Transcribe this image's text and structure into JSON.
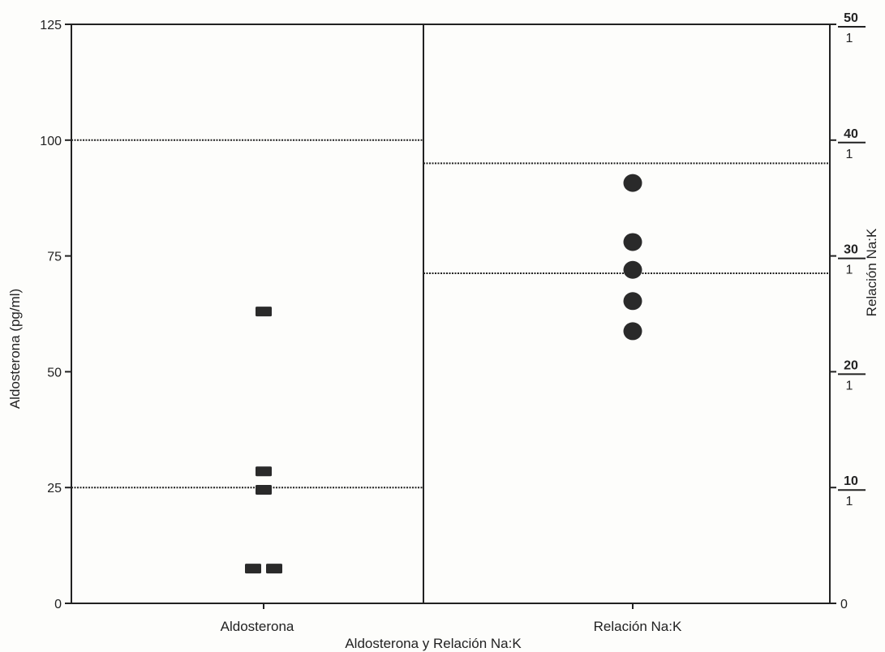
{
  "chart_data": {
    "type": "scatter",
    "xlabel": "Aldosterona y Relación Na:K",
    "categories": [
      "Aldosterona",
      "Relación Na:K"
    ],
    "left_axis": {
      "label": "Aldosterona (pg/ml)",
      "ylim": [
        0,
        125
      ],
      "ticks": [
        "0",
        "25",
        "50",
        "75",
        "100",
        "125"
      ],
      "tick_values": [
        0,
        25,
        50,
        75,
        100,
        125
      ]
    },
    "right_axis": {
      "label": "Relación Na:K",
      "ylim": [
        0,
        50
      ],
      "tick_values": [
        0,
        10,
        20,
        30,
        40,
        50
      ],
      "ticks": [
        {
          "top": "0",
          "bottom": ""
        },
        {
          "top": "10",
          "bottom": "1"
        },
        {
          "top": "20",
          "bottom": "1"
        },
        {
          "top": "30",
          "bottom": "1"
        },
        {
          "top": "40",
          "bottom": "1"
        },
        {
          "top": "50",
          "bottom": "1"
        }
      ]
    },
    "series": [
      {
        "category": "Aldosterona",
        "axis": "left",
        "marker": "square",
        "points": [
          {
            "offset": 0,
            "value": 63
          },
          {
            "offset": 0,
            "value": 28.5
          },
          {
            "offset": 0,
            "value": 24.5
          },
          {
            "offset": -1,
            "value": 7.5
          },
          {
            "offset": 1,
            "value": 7.5
          }
        ]
      },
      {
        "category": "Relación Na:K",
        "axis": "right",
        "marker": "circle",
        "points": [
          {
            "offset": 0,
            "value": 36.3
          },
          {
            "offset": 0,
            "value": 31.2
          },
          {
            "offset": 0,
            "value": 28.8
          },
          {
            "offset": 0,
            "value": 26.1
          },
          {
            "offset": 0,
            "value": 23.5
          }
        ]
      }
    ],
    "reference_lines": [
      {
        "panel": "Aldosterona",
        "axis": "left",
        "value": 100
      },
      {
        "panel": "Aldosterona",
        "axis": "left",
        "value": 25
      },
      {
        "panel": "Relación Na:K",
        "axis": "right",
        "value": 38
      },
      {
        "panel": "Relación Na:K",
        "axis": "right",
        "value": 28.5
      }
    ],
    "grid": false,
    "colors": {
      "ink": "#222222",
      "marker": "#2a2a2a",
      "background": "#fdfdfb"
    }
  }
}
